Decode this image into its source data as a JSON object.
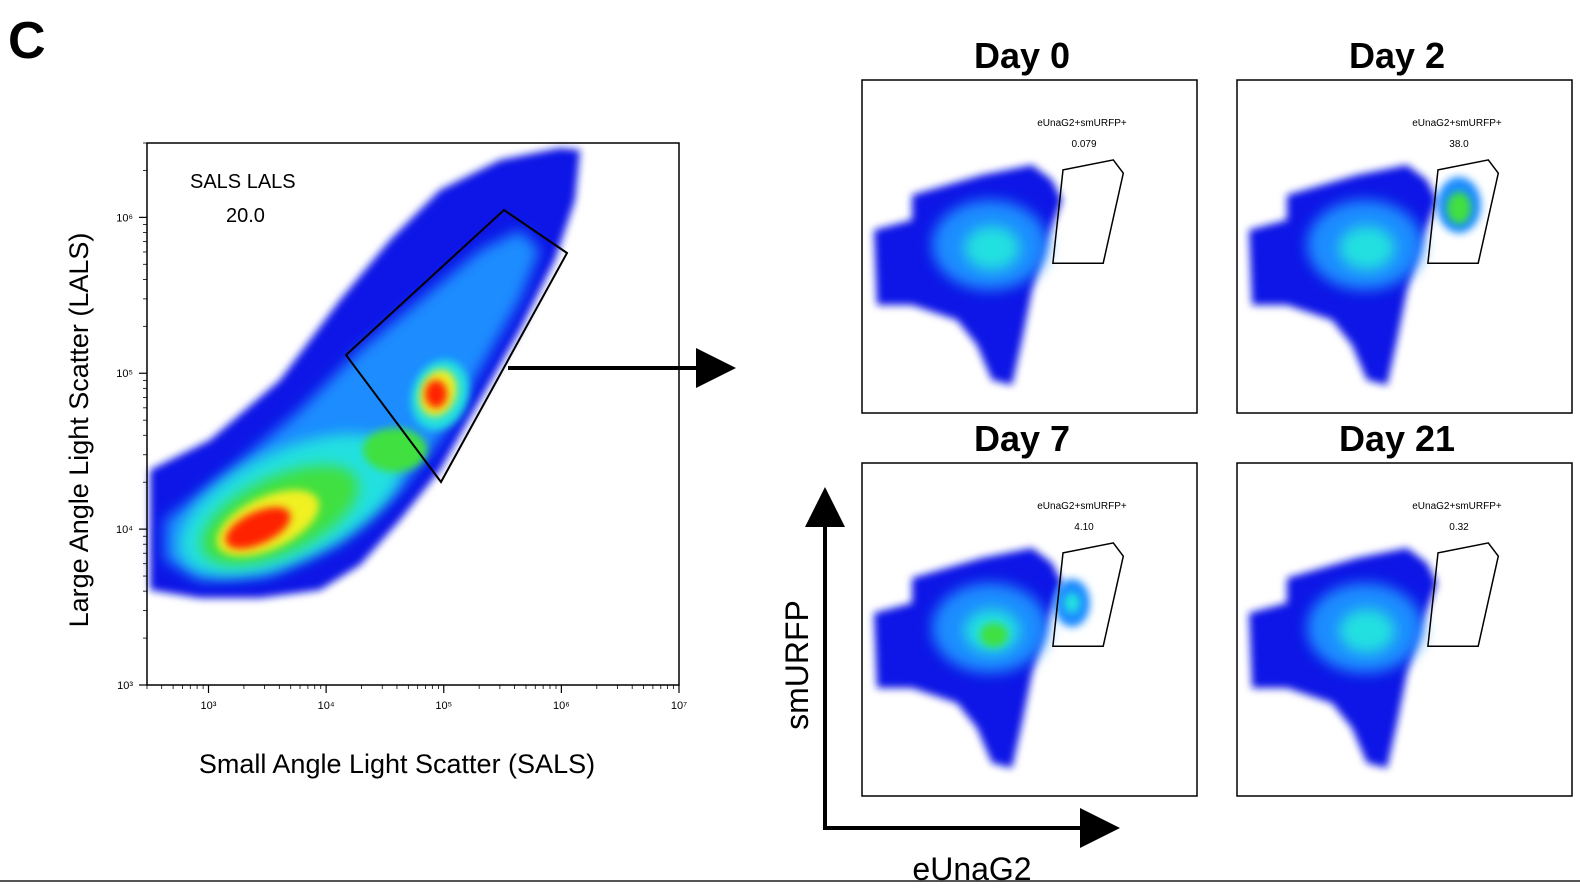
{
  "panel_label": "C",
  "chart_data": [
    {
      "type": "scatter",
      "style": "density-pseudocolor",
      "xlabel": "Small Angle Light Scatter (SALS)",
      "ylabel": "Large Angle Light Scatter (LALS)",
      "xscale": "log",
      "yscale": "log",
      "xlim": [
        300,
        10000000
      ],
      "ylim": [
        1000,
        3000000
      ],
      "x_ticks": [
        1000,
        10000,
        100000,
        1000000,
        10000000
      ],
      "x_tick_labels": [
        "10³",
        "10⁴",
        "10⁵",
        "10⁶",
        "10⁷"
      ],
      "y_ticks": [
        1000,
        10000,
        100000,
        1000000
      ],
      "y_tick_labels": [
        "10³",
        "10⁴",
        "10⁵",
        "10⁶"
      ],
      "gate": {
        "name": "SALS LALS",
        "percent": "20.0"
      },
      "density_peaks": [
        {
          "x": 3000,
          "y": 9000,
          "level": "high"
        },
        {
          "x": 90000,
          "y": 70000,
          "level": "high"
        },
        {
          "x": 40000,
          "y": 30000,
          "level": "medium"
        }
      ]
    },
    {
      "type": "scatter",
      "style": "density-pseudocolor",
      "title": "Day 0",
      "xlabel": "eUnaG2",
      "ylabel": "smURFP",
      "gate": {
        "name": "eUnaG2+smURFP+",
        "percent": "0.079"
      },
      "density_peaks": [
        {
          "x": 0.4,
          "y": 0.5,
          "level": "medium"
        }
      ]
    },
    {
      "type": "scatter",
      "style": "density-pseudocolor",
      "title": "Day 2",
      "xlabel": "eUnaG2",
      "ylabel": "smURFP",
      "gate": {
        "name": "eUnaG2+smURFP+",
        "percent": "38.0"
      },
      "density_peaks": [
        {
          "x": 0.62,
          "y": 0.62,
          "level": "medium"
        },
        {
          "x": 0.35,
          "y": 0.5,
          "level": "low"
        }
      ]
    },
    {
      "type": "scatter",
      "style": "density-pseudocolor",
      "title": "Day 7",
      "xlabel": "eUnaG2",
      "ylabel": "smURFP",
      "gate": {
        "name": "eUnaG2+smURFP+",
        "percent": "4.10"
      },
      "density_peaks": [
        {
          "x": 0.4,
          "y": 0.5,
          "level": "medium"
        },
        {
          "x": 0.62,
          "y": 0.6,
          "level": "low"
        }
      ]
    },
    {
      "type": "scatter",
      "style": "density-pseudocolor",
      "title": "Day 21",
      "xlabel": "eUnaG2",
      "ylabel": "smURFP",
      "gate": {
        "name": "eUnaG2+smURFP+",
        "percent": "0.32"
      },
      "density_peaks": [
        {
          "x": 0.4,
          "y": 0.5,
          "level": "medium"
        }
      ]
    }
  ],
  "shared_axes": {
    "x_label": "eUnaG2",
    "y_label": "smURFP"
  },
  "colors": {
    "low": "#0a14e6",
    "mid_low": "#1e8cff",
    "mid": "#20e0e0",
    "mid_high": "#40e040",
    "high_low": "#f0f020",
    "high": "#ff2000",
    "axis": "#000000"
  }
}
